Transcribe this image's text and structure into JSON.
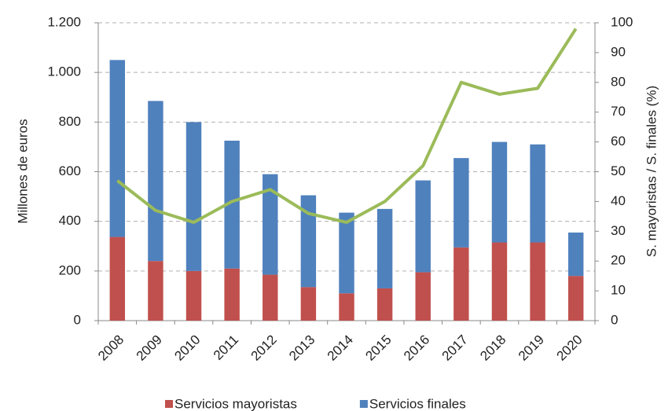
{
  "chart_data": {
    "type": "bar",
    "y_label": "Millones de euros",
    "y2_label": "S. mayoristas / S. finales (%)",
    "categories": [
      "2008",
      "2009",
      "2010",
      "2011",
      "2012",
      "2013",
      "2014",
      "2015",
      "2016",
      "2017",
      "2018",
      "2019",
      "2020"
    ],
    "series": [
      {
        "name": "Servicios mayoristas",
        "color": "#c0504d",
        "values": [
          337,
          240,
          200,
          210,
          185,
          135,
          110,
          130,
          195,
          295,
          315,
          315,
          180
        ]
      },
      {
        "name": "Servicios finales",
        "color": "#4f81bd",
        "values": [
          713,
          645,
          600,
          515,
          405,
          370,
          325,
          320,
          370,
          360,
          405,
          395,
          175
        ]
      },
      {
        "type": "line",
        "color": "#9bbb59",
        "axis": "y2",
        "values": [
          47,
          37,
          33,
          40,
          44,
          36,
          33,
          40,
          52,
          80,
          76,
          78,
          98
        ]
      }
    ],
    "stacked": true,
    "ylim": [
      0,
      1200
    ],
    "yticks": [
      0,
      200,
      400,
      600,
      800,
      {
        "value": 1000,
        "label": "1.000"
      },
      {
        "value": 1200,
        "label": "1.200"
      }
    ],
    "y2lim": [
      0,
      100
    ],
    "y2ticks": [
      0,
      10,
      20,
      30,
      40,
      50,
      60,
      70,
      80,
      90,
      100
    ],
    "grid": true,
    "legend": "bottom"
  }
}
